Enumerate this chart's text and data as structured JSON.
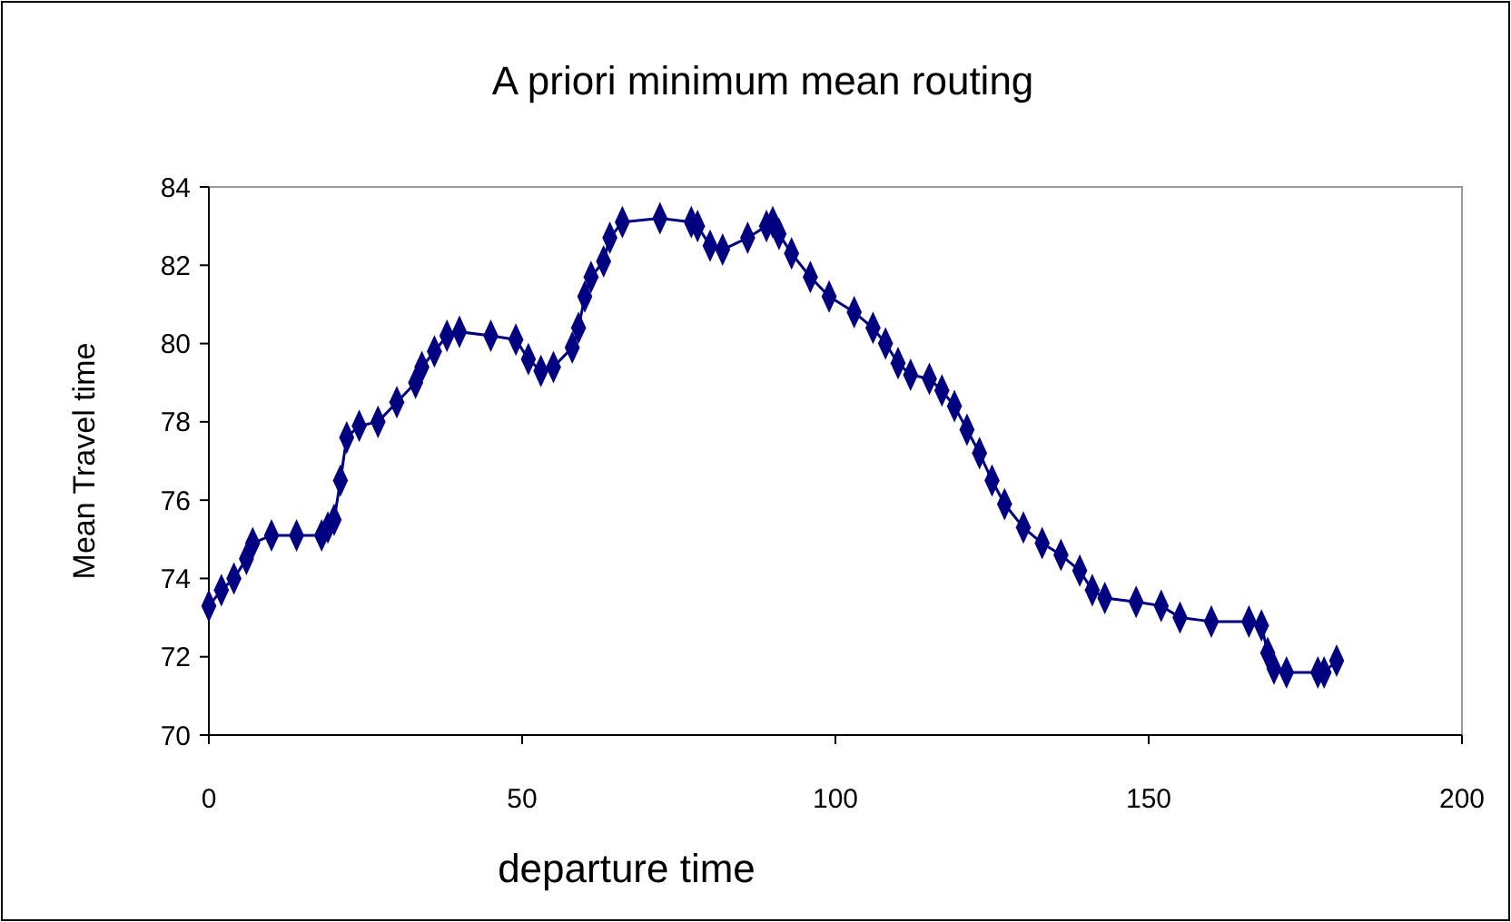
{
  "chart_data": {
    "type": "line",
    "title": "A priori minimum mean routing",
    "xlabel": "departure time",
    "ylabel": "Mean Travel time",
    "xlim": [
      0,
      200
    ],
    "xticks": [
      0,
      50,
      100,
      150,
      200
    ],
    "ylim": [
      70,
      84
    ],
    "yticks": [
      70,
      72,
      74,
      76,
      78,
      80,
      82,
      84
    ],
    "marker": "diamond",
    "line_style": "solid",
    "series": [
      {
        "color": "#000080",
        "x": [
          0,
          2,
          4,
          6,
          7,
          10,
          14,
          18,
          19,
          20,
          21,
          22,
          24,
          27,
          30,
          33,
          34,
          36,
          38,
          40,
          45,
          49,
          51,
          53,
          55,
          58,
          59,
          60,
          61,
          63,
          64,
          66,
          72,
          77,
          78,
          80,
          82,
          86,
          89,
          90,
          91,
          93,
          96,
          99,
          103,
          106,
          108,
          110,
          112,
          115,
          117,
          119,
          121,
          123,
          125,
          127,
          130,
          133,
          136,
          139,
          141,
          143,
          148,
          152,
          155,
          160,
          166,
          168,
          169,
          170,
          172,
          177,
          178,
          180
        ],
        "values": [
          73.3,
          73.7,
          74.0,
          74.5,
          74.9,
          75.1,
          75.1,
          75.1,
          75.3,
          75.5,
          76.5,
          77.6,
          77.9,
          78.0,
          78.5,
          79.0,
          79.4,
          79.8,
          80.2,
          80.3,
          80.2,
          80.1,
          79.6,
          79.3,
          79.4,
          79.9,
          80.4,
          81.2,
          81.7,
          82.1,
          82.7,
          83.1,
          83.2,
          83.1,
          83.0,
          82.5,
          82.4,
          82.7,
          83.0,
          83.1,
          82.8,
          82.3,
          81.7,
          81.2,
          80.8,
          80.4,
          80.0,
          79.5,
          79.2,
          79.1,
          78.8,
          78.4,
          77.8,
          77.2,
          76.5,
          75.9,
          75.3,
          74.9,
          74.6,
          74.2,
          73.7,
          73.5,
          73.4,
          73.3,
          73.0,
          72.9,
          72.9,
          72.8,
          72.1,
          71.7,
          71.6,
          71.6,
          71.6,
          71.9
        ]
      }
    ]
  }
}
